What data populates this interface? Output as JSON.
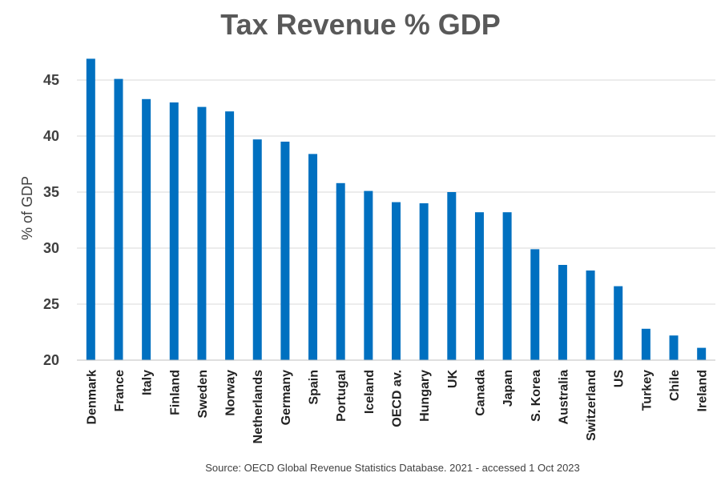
{
  "chart_data": {
    "type": "bar",
    "title": "Tax Revenue % GDP",
    "ylabel": "% of GDP",
    "xlabel": "",
    "ylim": [
      20,
      47
    ],
    "yticks": [
      20,
      25,
      30,
      35,
      40,
      45
    ],
    "grid": true,
    "categories": [
      "Denmark",
      "France",
      "Italy",
      "Finland",
      "Sweden",
      "Norway",
      "Netherlands",
      "Germany",
      "Spain",
      "Portugal",
      "Iceland",
      "OECD av.",
      "Hungary",
      "UK",
      "Canada",
      "Japan",
      "S. Korea",
      "Australia",
      "Switzerland",
      "US",
      "Turkey",
      "Chile",
      "Ireland"
    ],
    "values": [
      46.9,
      45.1,
      43.3,
      43.0,
      42.6,
      42.2,
      39.7,
      39.5,
      38.4,
      35.8,
      35.1,
      34.1,
      34.0,
      35.0,
      33.2,
      33.2,
      29.9,
      28.5,
      28.0,
      26.6,
      22.8,
      22.2,
      21.1
    ],
    "bar_color": "#0070C0",
    "source": "Source: OECD Global Revenue Statistics Database. 2021 - accessed 1 Oct 2023"
  }
}
